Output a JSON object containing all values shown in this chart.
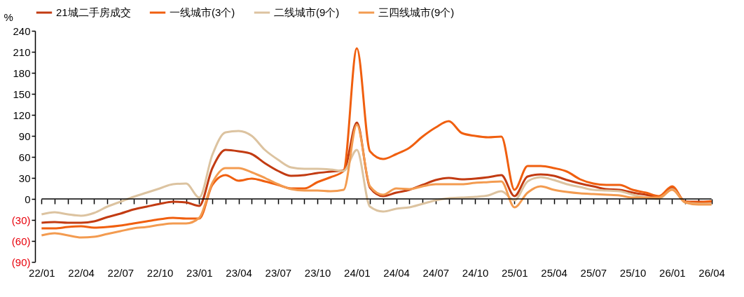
{
  "chart_data": {
    "type": "line",
    "ylabel": "%",
    "legend": "top",
    "grid": false,
    "categories": [
      "22/01",
      null,
      null,
      "22/04",
      null,
      null,
      "22/07",
      null,
      null,
      "22/10",
      null,
      null,
      "23/01",
      null,
      null,
      "23/04",
      null,
      null,
      "23/07",
      null,
      null,
      "23/10",
      null,
      null,
      "24/01",
      null,
      null,
      "24/04",
      null,
      null,
      "24/07",
      null,
      null,
      "24/10",
      null,
      null,
      "25/01",
      null,
      null,
      "25/04",
      null,
      null,
      "25/07",
      null,
      null,
      "25/10",
      null,
      null,
      "26/01",
      null,
      null,
      "26/04"
    ],
    "ylim": [
      -90,
      240
    ],
    "yticks": [
      {
        "value": -90,
        "label": "(90)"
      },
      {
        "value": -60,
        "label": "(60)"
      },
      {
        "value": -30,
        "label": "(30)"
      },
      0,
      30,
      60,
      90,
      120,
      150,
      180,
      210,
      240
    ],
    "series": [
      {
        "name": "21城二手房成交",
        "color": "#c23b12",
        "values": [
          -34,
          -33,
          -34,
          -34,
          -32,
          -26,
          -21,
          -15,
          -11,
          -7,
          -4,
          -5,
          -10,
          44,
          70,
          68,
          64,
          51,
          40,
          33,
          34,
          37,
          39,
          41,
          109,
          16,
          4,
          9,
          13,
          20,
          27,
          30,
          28,
          29,
          31,
          34,
          4,
          32,
          35,
          33,
          27,
          22,
          18,
          14,
          13,
          9,
          6,
          3,
          16,
          -4,
          -4,
          -4
        ]
      },
      {
        "name": "一线城市(3个)",
        "color": "#f05f0f",
        "values": [
          -42,
          -42,
          -40,
          -39,
          -41,
          -40,
          -38,
          -35,
          -32,
          -29,
          -27,
          -28,
          -28,
          20,
          34,
          26,
          29,
          25,
          20,
          15,
          15,
          24,
          31,
          40,
          215,
          68,
          57,
          64,
          73,
          89,
          102,
          111,
          94,
          90,
          88,
          89,
          13,
          47,
          47,
          44,
          39,
          28,
          22,
          20,
          20,
          13,
          9,
          4,
          18,
          -4,
          -5,
          -3
        ]
      },
      {
        "name": "二线城市(9个)",
        "color": "#dcc3a0",
        "values": [
          -22,
          -19,
          -22,
          -24,
          -20,
          -11,
          -4,
          3,
          9,
          15,
          21,
          22,
          2,
          63,
          95,
          97,
          90,
          70,
          56,
          45,
          43,
          43,
          42,
          40,
          70,
          -11,
          -18,
          -14,
          -12,
          -7,
          -2,
          1,
          2,
          3,
          5,
          11,
          -2,
          25,
          31,
          27,
          21,
          17,
          13,
          12,
          11,
          6,
          2,
          0,
          14,
          -5,
          -7,
          -7
        ]
      },
      {
        "name": "三四线城市(9个)",
        "color": "#f39b50",
        "values": [
          -52,
          -49,
          -52,
          -55,
          -54,
          -50,
          -46,
          -42,
          -40,
          -37,
          -35,
          -35,
          -27,
          23,
          44,
          44,
          38,
          30,
          21,
          14,
          12,
          12,
          11,
          13,
          106,
          18,
          6,
          15,
          14,
          18,
          21,
          21,
          21,
          23,
          24,
          25,
          -12,
          9,
          18,
          13,
          10,
          8,
          7,
          6,
          5,
          2,
          2,
          2,
          13,
          -5,
          -8,
          -8
        ]
      }
    ]
  }
}
